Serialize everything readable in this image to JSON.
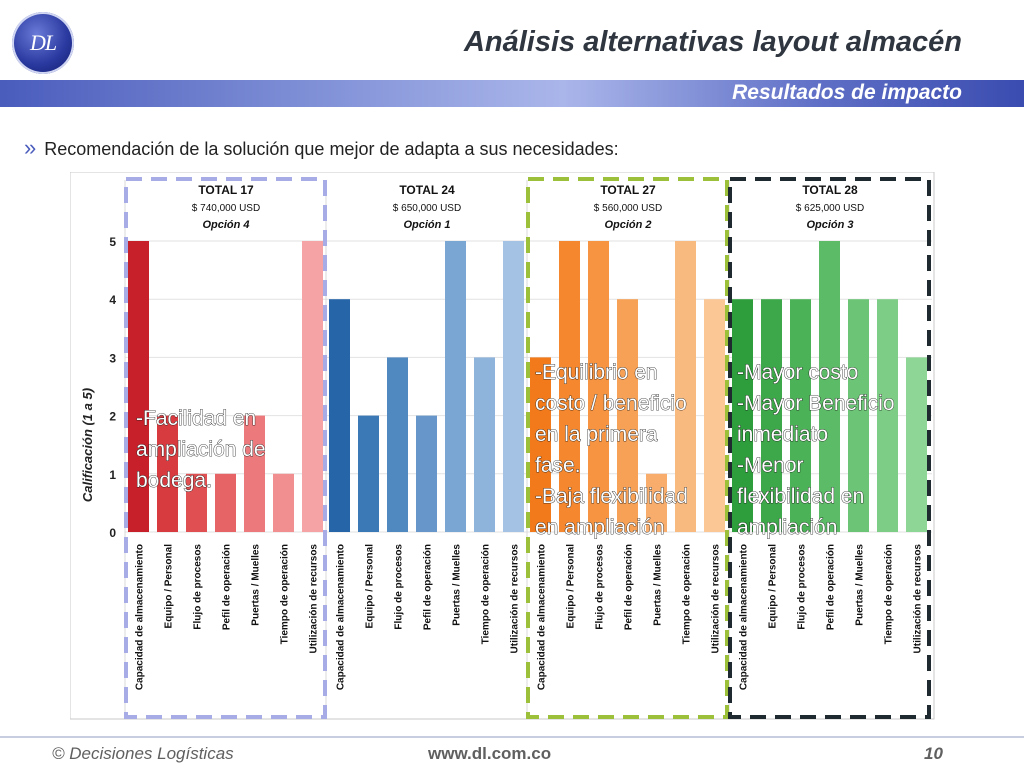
{
  "header": {
    "logo_text": "DL",
    "title": "Análisis alternativas layout almacén",
    "subtitle": "Resultados de impacto"
  },
  "bullet": {
    "text": "Recomendación de la solución que mejor de adapta a sus necesidades:"
  },
  "chart_data": {
    "type": "bar",
    "ylabel": "Calificación (1 a 5)",
    "ylim": [
      0,
      5
    ],
    "yticks": [
      "0",
      "1",
      "2",
      "3",
      "4",
      "5"
    ],
    "categories": [
      "Capacidad de almacenamiento",
      "Equipo / Personal",
      "Flujo de procesos",
      "Pefil de operación",
      "Puertas / Muelles",
      "Tiempo de operación",
      "Utilización de recursos"
    ],
    "groups": [
      {
        "total": "TOTAL 17",
        "cost": "$ 740,000 USD",
        "option": "Opción 4",
        "values": [
          5,
          2,
          1,
          1,
          2,
          1,
          5
        ],
        "colors": [
          "#c8202a",
          "#d73a3f",
          "#e04f52",
          "#e66366",
          "#ec7a7c",
          "#f18f90",
          "#f5a3a4"
        ],
        "box_color": "#a8ace6",
        "annotation": [
          "-Facilidad en",
          "ampliación de",
          "bodega."
        ]
      },
      {
        "total": "TOTAL 24",
        "cost": "$ 650,000 USD",
        "option": "Opción 1",
        "values": [
          4,
          2,
          3,
          2,
          5,
          3,
          5
        ],
        "colors": [
          "#2565a8",
          "#3a78b6",
          "#5088c0",
          "#6797ca",
          "#7aa6d3",
          "#8fb4dc",
          "#a3c2e4"
        ],
        "box_color": "",
        "annotation": []
      },
      {
        "total": "TOTAL 27",
        "cost": "$ 560,000 USD",
        "option": "Opción 2",
        "values": [
          3,
          5,
          5,
          4,
          1,
          5,
          4
        ],
        "colors": [
          "#f27a1a",
          "#f5882e",
          "#f69442",
          "#f7a157",
          "#f8ad6c",
          "#f9ba80",
          "#fbc795"
        ],
        "box_color": "#9cc03a",
        "annotation": [
          "-Equilibrio en",
          "costo / beneficio",
          "en la primera",
          "fase.",
          "-Baja flexibilidad",
          "en ampliación"
        ]
      },
      {
        "total": "TOTAL 28",
        "cost": "$ 625,000 USD",
        "option": "Opción 3",
        "values": [
          4,
          4,
          4,
          5,
          4,
          4,
          3
        ],
        "colors": [
          "#2e9e3c",
          "#3ca84a",
          "#4cb258",
          "#5cbb67",
          "#6cc476",
          "#7dcd86",
          "#8ed696"
        ],
        "box_color": "#1e2a30",
        "annotation": [
          "-Mayor costo",
          "-Mayor Beneficio",
          "inmediato",
          "-Menor",
          "flexibilidad en",
          "ampliación"
        ]
      }
    ]
  },
  "footer": {
    "copyright": "© Decisiones Logísticas",
    "website": "www.dl.com.co",
    "page": "10"
  }
}
